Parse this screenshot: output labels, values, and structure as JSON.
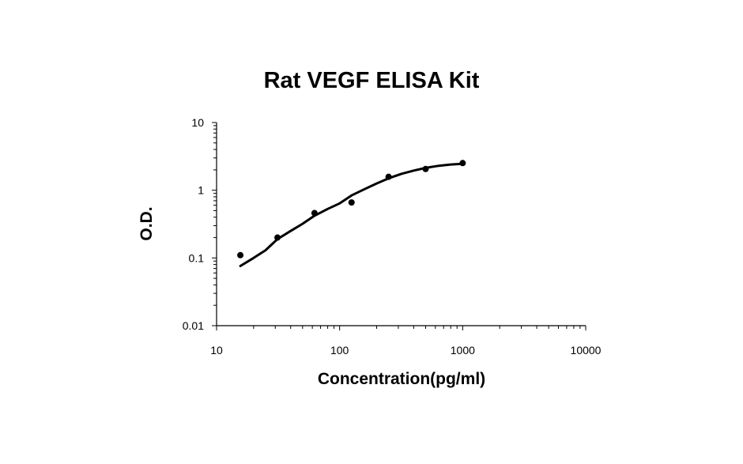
{
  "chart_data": {
    "type": "scatter",
    "title": "Rat VEGF ELISA Kit",
    "xlabel": "Concentration(pg/ml)",
    "ylabel": "O.D.",
    "x_scale": "log",
    "y_scale": "log",
    "xlim": [
      10,
      10000
    ],
    "ylim": [
      0.01,
      10
    ],
    "x_ticks": [
      "10",
      "100",
      "1000",
      "10000"
    ],
    "y_ticks": [
      "0.01",
      "0.1",
      "1",
      "10"
    ],
    "grid": false,
    "legend": "none",
    "series": [
      {
        "x": [
          15.6,
          31.25,
          62.5,
          125,
          250,
          500,
          1000
        ],
        "y": [
          0.11,
          0.2,
          0.46,
          0.66,
          1.58,
          2.06,
          2.52
        ]
      }
    ],
    "fit_curve": {
      "x": [
        15.6,
        20,
        25,
        31.25,
        40,
        50,
        62.5,
        80,
        100,
        125,
        160,
        200,
        250,
        320,
        400,
        500,
        640,
        800,
        1000
      ],
      "y": [
        0.076,
        0.1,
        0.13,
        0.19,
        0.25,
        0.32,
        0.42,
        0.53,
        0.64,
        0.84,
        1.04,
        1.26,
        1.5,
        1.75,
        1.95,
        2.14,
        2.3,
        2.4,
        2.46
      ]
    },
    "colors": {
      "marker": "#000000",
      "curve": "#000000",
      "axis": "#000000"
    }
  }
}
